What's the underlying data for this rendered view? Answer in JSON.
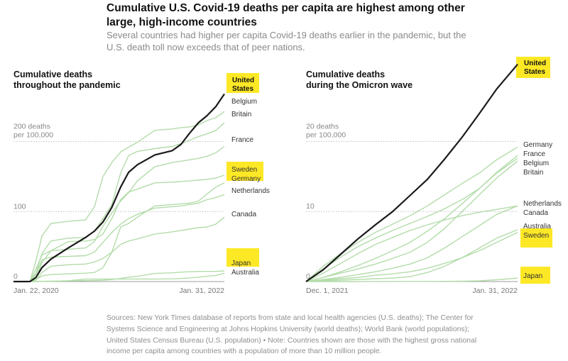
{
  "header": {
    "title": "Cumulative U.S. Covid-19 deaths per capita are highest among other large, high-income countries",
    "subtitle": "Several countries had higher per capita Covid-19 deaths earlier in the pandemic, but the U.S. death toll now exceeds that of peer nations."
  },
  "colors": {
    "us_line": "#1a1a1a",
    "other_lines": "#b3dcaa",
    "highlight": "#fde826"
  },
  "source_note": "Sources: New York Times database of reports from state and local health agencies (U.S. deaths); The Center for Systems Science and Engineering at Johns Hopkins University (world deaths); World Bank (world populations); United States Census Bureau (U.S. population) • Note: Countries shown are those with the highest gross national income per capita among countries with a population of more than 10 million people.",
  "chart_data": [
    {
      "type": "line",
      "title": "Cumulative deaths throughout the pandemic",
      "title_lines": [
        "Cumulative deaths",
        "throughout the pandemic"
      ],
      "x_tick_labels": [
        "Jan. 22, 2020",
        "Jan. 31, 2022"
      ],
      "x_range": [
        "2020-01-22",
        "2022-01-31"
      ],
      "ylim": [
        0,
        260
      ],
      "y_ticks": [
        {
          "value": 0,
          "label": "0"
        },
        {
          "value": 100,
          "label": "100"
        },
        {
          "value": 200,
          "label": "200 deaths",
          "label2": "per 100,000"
        }
      ],
      "x": [
        "2020-01-22",
        "2020-03-01",
        "2020-03-20",
        "2020-04-10",
        "2020-05-01",
        "2020-06-01",
        "2020-08-01",
        "2020-10-01",
        "2020-11-01",
        "2020-12-01",
        "2021-01-01",
        "2021-02-01",
        "2021-03-01",
        "2021-04-01",
        "2021-06-01",
        "2021-08-01",
        "2021-09-01",
        "2021-10-01",
        "2021-11-01",
        "2021-12-01",
        "2022-01-01",
        "2022-01-31"
      ],
      "series": [
        {
          "name": "United States",
          "highlight": true,
          "values": [
            0,
            0,
            0.1,
            6,
            20,
            32,
            48,
            63,
            72,
            85,
            106,
            135,
            156,
            167,
            181,
            187,
            196,
            212,
            227,
            237,
            250,
            268
          ]
        },
        {
          "name": "Belgium",
          "highlight": false,
          "values": [
            0,
            0,
            0.5,
            30,
            65,
            83,
            86,
            88,
            107,
            150,
            170,
            185,
            192,
            199,
            216,
            218,
            220,
            221,
            224,
            230,
            234,
            243
          ]
        },
        {
          "name": "Britain",
          "highlight": false,
          "values": [
            0,
            0,
            0.2,
            12,
            40,
            58,
            62,
            63,
            72,
            90,
            110,
            155,
            180,
            186,
            190,
            193,
            197,
            202,
            207,
            211,
            216,
            227
          ]
        },
        {
          "name": "France",
          "highlight": false,
          "values": [
            0,
            0,
            0.3,
            18,
            38,
            44,
            46,
            48,
            57,
            79,
            98,
            115,
            127,
            144,
            164,
            170,
            172,
            174,
            176,
            179,
            184,
            193
          ]
        },
        {
          "name": "Sweden",
          "highlight": true,
          "values": [
            0,
            0,
            0.1,
            5,
            27,
            44,
            57,
            58,
            60,
            68,
            90,
            117,
            128,
            132,
            141,
            142,
            143,
            144,
            145,
            146,
            148,
            152
          ]
        },
        {
          "name": "Germany",
          "highlight": false,
          "values": [
            0,
            0,
            0.1,
            3,
            8,
            10,
            11,
            12,
            13,
            20,
            42,
            78,
            83,
            92,
            108,
            110,
            111,
            112,
            115,
            125,
            135,
            141
          ]
        },
        {
          "name": "Netherlands",
          "highlight": false,
          "values": [
            0,
            0,
            0.1,
            10,
            31,
            35,
            36,
            37,
            42,
            56,
            70,
            82,
            90,
            96,
            105,
            107,
            108,
            110,
            112,
            117,
            120,
            124
          ]
        },
        {
          "name": "Canada",
          "highlight": false,
          "values": [
            0,
            0,
            0,
            2,
            13,
            22,
            24,
            25,
            28,
            33,
            42,
            53,
            58,
            61,
            68,
            71,
            73,
            75,
            77,
            78,
            82,
            92
          ]
        },
        {
          "name": "Japan",
          "highlight": true,
          "values": [
            0,
            0,
            0,
            0,
            0.2,
            0.5,
            0.8,
            1.3,
            1.5,
            1.8,
            2.8,
            4.5,
            6.3,
            7.5,
            11.5,
            12.5,
            13.5,
            14,
            14.5,
            14.5,
            14.6,
            15.2
          ]
        },
        {
          "name": "Australia",
          "highlight": false,
          "values": [
            0,
            0,
            0,
            0.2,
            0.4,
            0.4,
            1.2,
            3.5,
            3.6,
            3.6,
            3.6,
            3.6,
            3.6,
            3.6,
            3.6,
            3.8,
            4.4,
            5.2,
            6.3,
            7.7,
            8.7,
            12
          ]
        }
      ]
    },
    {
      "type": "line",
      "title": "Cumulative deaths during the Omicron wave",
      "title_lines": [
        "Cumulative deaths",
        "during the Omicron wave"
      ],
      "x_tick_labels": [
        "Dec. 1, 2021",
        "Jan. 31, 2022"
      ],
      "x_range": [
        "2021-12-01",
        "2022-01-31"
      ],
      "ylim": [
        0,
        31
      ],
      "y_ticks": [
        {
          "value": 0,
          "label": "0"
        },
        {
          "value": 10,
          "label": "10"
        },
        {
          "value": 20,
          "label": "20 deaths",
          "label2": "per 100,000"
        }
      ],
      "x": [
        "2021-12-01",
        "2021-12-06",
        "2021-12-11",
        "2021-12-16",
        "2021-12-21",
        "2021-12-26",
        "2021-12-31",
        "2022-01-05",
        "2022-01-10",
        "2022-01-15",
        "2022-01-20",
        "2022-01-25",
        "2022-01-31"
      ],
      "series": [
        {
          "name": "United States",
          "highlight": true,
          "values": [
            0,
            1.7,
            3.9,
            6.1,
            8.1,
            10.0,
            12.3,
            14.6,
            17.5,
            20.6,
            24.0,
            27.5,
            31.0
          ]
        },
        {
          "name": "Germany",
          "highlight": false,
          "values": [
            0,
            2.2,
            4.0,
            5.6,
            7.0,
            8.2,
            9.4,
            10.8,
            12.4,
            14.0,
            15.5,
            17.4,
            19.2
          ]
        },
        {
          "name": "France",
          "highlight": false,
          "values": [
            0,
            0.6,
            1.4,
            2.3,
            3.3,
            4.4,
            5.6,
            7.2,
            9.0,
            11.1,
            13.3,
            15.6,
            18.0
          ]
        },
        {
          "name": "Belgium",
          "highlight": false,
          "values": [
            0,
            1.8,
            3.5,
            5.0,
            6.2,
            7.3,
            8.3,
            9.3,
            10.4,
            11.7,
            13.3,
            15.5,
            17.6
          ]
        },
        {
          "name": "Britain",
          "highlight": false,
          "values": [
            0,
            0.6,
            1.2,
            1.8,
            2.5,
            3.3,
            4.2,
            5.6,
            7.6,
            10.0,
            12.4,
            14.8,
            17.2
          ]
        },
        {
          "name": "Netherlands",
          "highlight": false,
          "values": [
            0,
            1.2,
            2.6,
            4.0,
            5.3,
            6.3,
            7.3,
            8.1,
            8.8,
            9.4,
            9.9,
            10.3,
            10.8
          ]
        },
        {
          "name": "Canada",
          "highlight": false,
          "values": [
            0,
            0.3,
            0.6,
            1.0,
            1.4,
            1.9,
            2.5,
            3.4,
            4.8,
            6.4,
            8.0,
            9.6,
            10.8
          ]
        },
        {
          "name": "Australia",
          "highlight": false,
          "values": [
            0,
            0.1,
            0.2,
            0.3,
            0.4,
            0.5,
            0.7,
            1.3,
            2.2,
            3.4,
            4.8,
            6.2,
            7.4
          ]
        },
        {
          "name": "Sweden",
          "highlight": true,
          "values": [
            0,
            0.2,
            0.4,
            0.6,
            0.9,
            1.1,
            1.4,
            1.9,
            2.6,
            3.4,
            4.4,
            5.6,
            7.0
          ]
        },
        {
          "name": "Japan",
          "highlight": true,
          "values": [
            0,
            0,
            0,
            0,
            0.01,
            0.01,
            0.02,
            0.02,
            0.03,
            0.05,
            0.1,
            0.25,
            0.5
          ]
        }
      ]
    }
  ]
}
